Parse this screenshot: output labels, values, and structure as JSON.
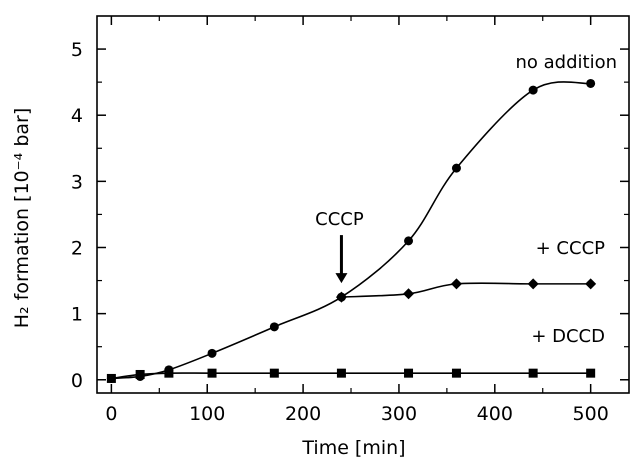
{
  "chart_data": {
    "type": "line",
    "xlabel": "Time [min]",
    "ylabel": "H₂ formation [10⁻⁴ bar]",
    "xlim": [
      -15,
      540
    ],
    "ylim": [
      -0.2,
      5.5
    ],
    "xticks": [
      0,
      100,
      200,
      300,
      400,
      500
    ],
    "yticks": [
      0,
      1,
      2,
      3,
      4,
      5
    ],
    "grid": false,
    "series": [
      {
        "name": "no addition",
        "marker": "circle",
        "x": [
          0,
          30,
          60,
          105,
          170,
          240,
          310,
          360,
          440,
          500
        ],
        "y": [
          0.02,
          0.05,
          0.15,
          0.4,
          0.8,
          1.25,
          2.1,
          3.2,
          4.38,
          4.48
        ]
      },
      {
        "name": "+ CCCP",
        "marker": "diamond",
        "x": [
          240,
          310,
          360,
          440,
          500
        ],
        "y": [
          1.25,
          1.3,
          1.45,
          1.45,
          1.45
        ]
      },
      {
        "name": "+ DCCD",
        "marker": "square",
        "x": [
          0,
          30,
          60,
          105,
          170,
          240,
          310,
          360,
          440,
          500
        ],
        "y": [
          0.02,
          0.08,
          0.1,
          0.1,
          0.1,
          0.1,
          0.1,
          0.1,
          0.1,
          0.1
        ]
      }
    ],
    "annotations": [
      {
        "text": "CCCP",
        "type": "arrow",
        "x": 240,
        "y": 1.25
      }
    ]
  }
}
